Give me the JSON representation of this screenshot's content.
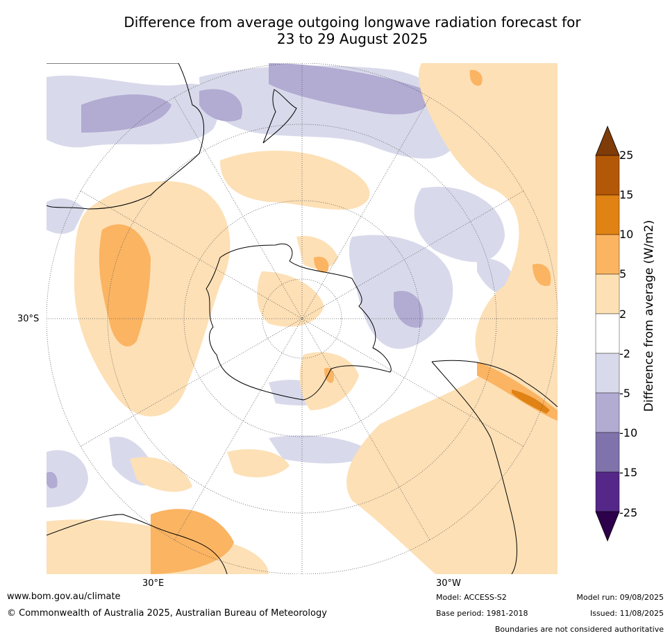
{
  "title_line1": "Difference from average outgoing longwave radiation forecast for",
  "title_line2": "23 to 29 August 2025",
  "map": {
    "labels": {
      "lat30": "30°S",
      "lon30e": "30°E",
      "lon30w": "30°W"
    },
    "colors": {
      "pos_2_5": "#fde0b6",
      "pos_5_10": "#fbb462",
      "pos_10_15": "#e08214",
      "pos_15_25": "#b35806",
      "pos_gt25": "#7f3b08",
      "neg_2_5": "#d8daeb",
      "neg_5_10": "#b2abd2",
      "neg_10_15": "#8073ac",
      "neg_15_25": "#542788",
      "neg_lt25": "#2d004b"
    }
  },
  "colorbar": {
    "title": "Difference from average (W/m2)",
    "ticks": [
      "25",
      "15",
      "10",
      "5",
      "2",
      "-2",
      "-5",
      "-10",
      "-15",
      "-25"
    ]
  },
  "footer": {
    "website": "www.bom.gov.au/climate",
    "copyright": "© Commonwealth of Australia 2025, Australian Bureau of Meteorology",
    "model": "Model: ACCESS-S2",
    "base_period": "Base period: 1981-2018",
    "model_run": "Model run: 09/08/2025",
    "issued": "Issued: 11/08/2025",
    "disclaimer": "Boundaries are not considered authoritative"
  }
}
